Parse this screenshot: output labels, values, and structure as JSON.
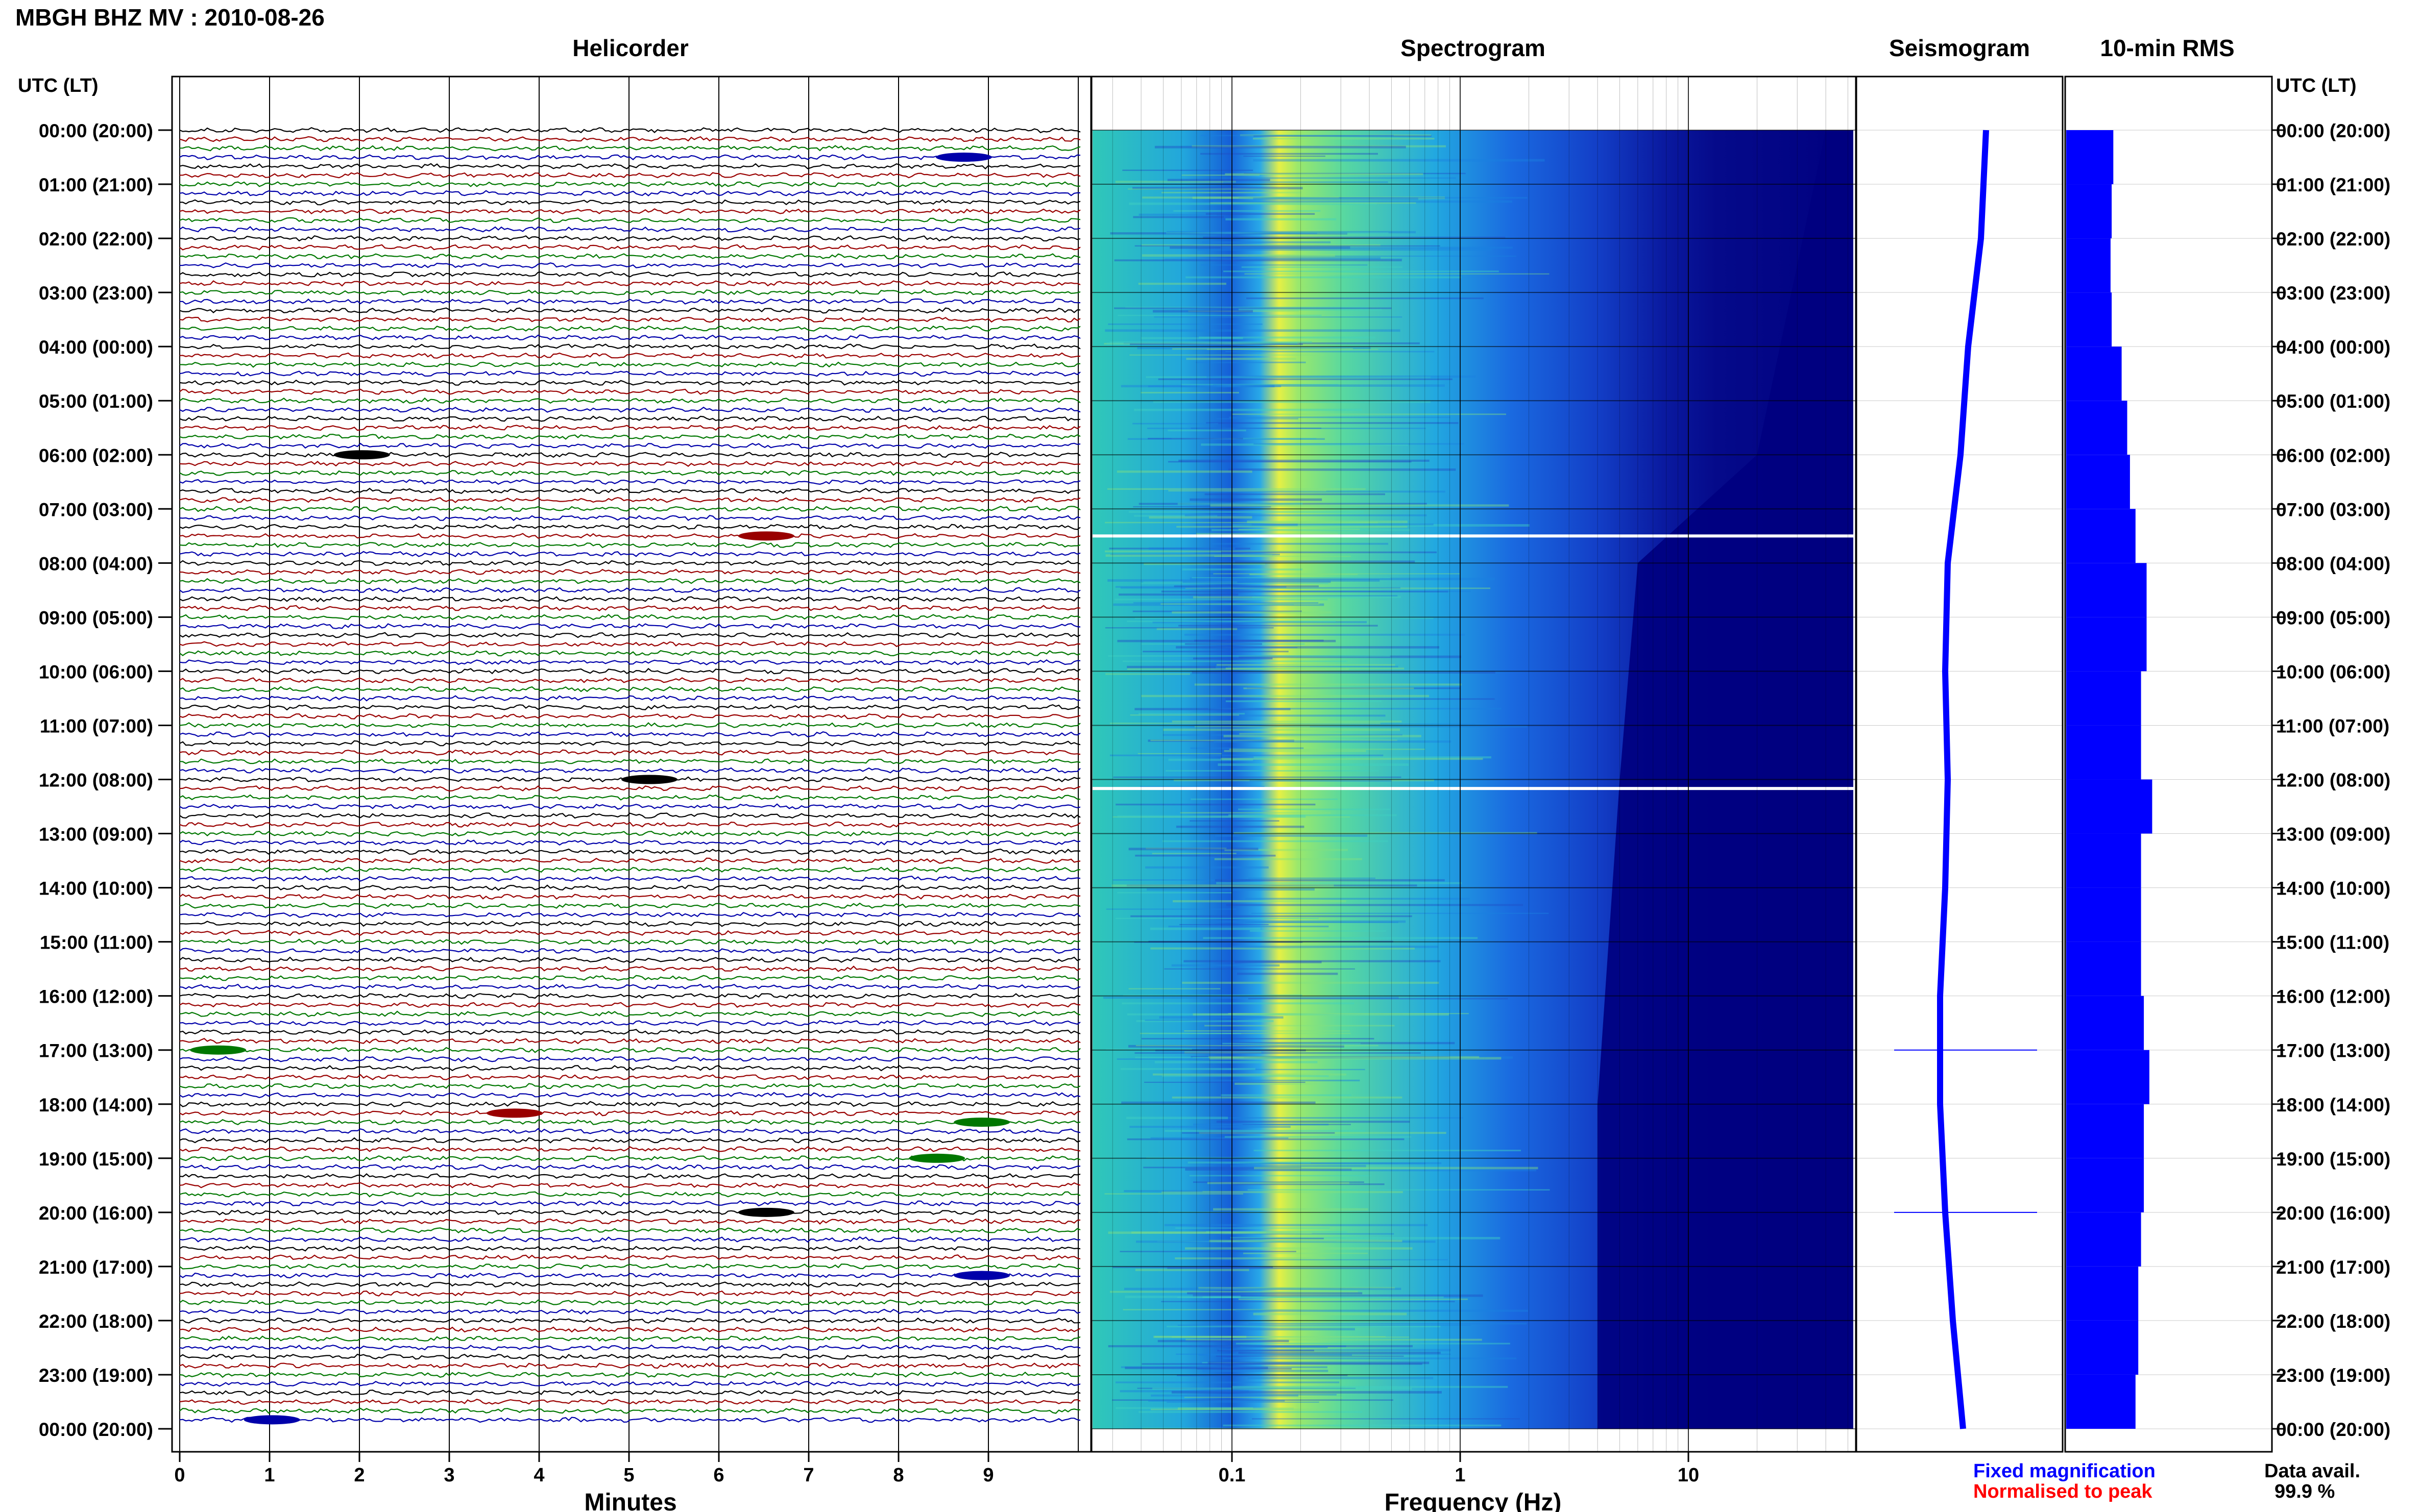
{
  "header": {
    "title": "MBGH BHZ MV : 2010-08-26"
  },
  "panels": {
    "helicorder": "Helicorder",
    "spectrogram": "Spectrogram",
    "seismogram": "Seismogram",
    "rms": "10-min RMS"
  },
  "time_axis_label": "UTC (LT)",
  "time_labels": [
    "00:00 (20:00)",
    "01:00 (21:00)",
    "02:00 (22:00)",
    "03:00 (23:00)",
    "04:00 (00:00)",
    "05:00 (01:00)",
    "06:00 (02:00)",
    "07:00 (03:00)",
    "08:00 (04:00)",
    "09:00 (05:00)",
    "10:00 (06:00)",
    "11:00 (07:00)",
    "12:00 (08:00)",
    "13:00 (09:00)",
    "14:00 (10:00)",
    "15:00 (11:00)",
    "16:00 (12:00)",
    "17:00 (13:00)",
    "18:00 (14:00)",
    "19:00 (15:00)",
    "20:00 (16:00)",
    "21:00 (17:00)",
    "22:00 (18:00)",
    "23:00 (19:00)",
    "00:00 (20:00)"
  ],
  "helicorder_axis": {
    "label": "Minutes",
    "ticks": [
      "0",
      "1",
      "2",
      "3",
      "4",
      "5",
      "6",
      "7",
      "8",
      "9"
    ]
  },
  "spectrogram_axis": {
    "label": "Frequency (Hz)",
    "ticks": [
      "0.1",
      "1",
      "10"
    ]
  },
  "legend": {
    "fixed": "Fixed magnification",
    "normalised": "Normalised to peak",
    "fixed_color": "#0000ff",
    "normalised_color": "#ff0000"
  },
  "availability": {
    "label": "Data avail.",
    "value": "99.9 %"
  },
  "colors": {
    "trace_cycle": [
      "#000000",
      "#990000",
      "#007700",
      "#0000aa"
    ],
    "spectro_low": "#000080",
    "spectro_high": "#ffff40",
    "rms_bar": "#0000ff"
  },
  "chart_data": [
    {
      "type": "line",
      "title": "Helicorder",
      "xlabel": "Minutes",
      "xlim": [
        0,
        10
      ],
      "lines": 144,
      "minutes_per_line": 10,
      "events": [
        {
          "utc": "00:30",
          "minute": 8.5
        },
        {
          "utc": "06:00",
          "minute": 1.8
        },
        {
          "utc": "07:30",
          "minute": 6.3
        },
        {
          "utc": "12:00",
          "minute": 5.0
        },
        {
          "utc": "17:00",
          "minute": 0.2
        },
        {
          "utc": "18:10",
          "minute": 3.5
        },
        {
          "utc": "18:20",
          "minute": 8.7
        },
        {
          "utc": "19:00",
          "minute": 8.2
        },
        {
          "utc": "20:00",
          "minute": 6.3
        },
        {
          "utc": "21:10",
          "minute": 8.7
        },
        {
          "utc": "23:50",
          "minute": 0.8
        }
      ]
    },
    {
      "type": "heatmap",
      "title": "Spectrogram",
      "xlabel": "Frequency (Hz)",
      "xscale": "log",
      "xlim": [
        0.03,
        50
      ],
      "peak_band_hz": [
        0.12,
        0.35
      ],
      "high_freq_cutoff_hz": [
        {
          "utc": "00:00",
          "hz": 40
        },
        {
          "utc": "06:00",
          "hz": 20
        },
        {
          "utc": "08:00",
          "hz": 6
        },
        {
          "utc": "12:00",
          "hz": 5
        },
        {
          "utc": "18:00",
          "hz": 4
        },
        {
          "utc": "24:00",
          "hz": 4
        }
      ],
      "data_gaps_utc": [
        "07:30",
        "12:10"
      ]
    },
    {
      "type": "line",
      "title": "Seismogram",
      "spikes_utc": [
        "17:00",
        "20:00"
      ]
    },
    {
      "type": "bar",
      "title": "10-min RMS",
      "orientation": "horizontal",
      "categories_hours": [
        0,
        1,
        2,
        3,
        4,
        5,
        6,
        7,
        8,
        9,
        10,
        11,
        12,
        13,
        14,
        15,
        16,
        17,
        18,
        19,
        20,
        21,
        22,
        23
      ],
      "values": [
        0.85,
        0.82,
        0.8,
        0.82,
        1.0,
        1.1,
        1.15,
        1.25,
        1.45,
        1.45,
        1.35,
        1.35,
        1.55,
        1.35,
        1.35,
        1.35,
        1.4,
        1.5,
        1.4,
        1.4,
        1.35,
        1.3,
        1.3,
        1.25
      ]
    }
  ]
}
